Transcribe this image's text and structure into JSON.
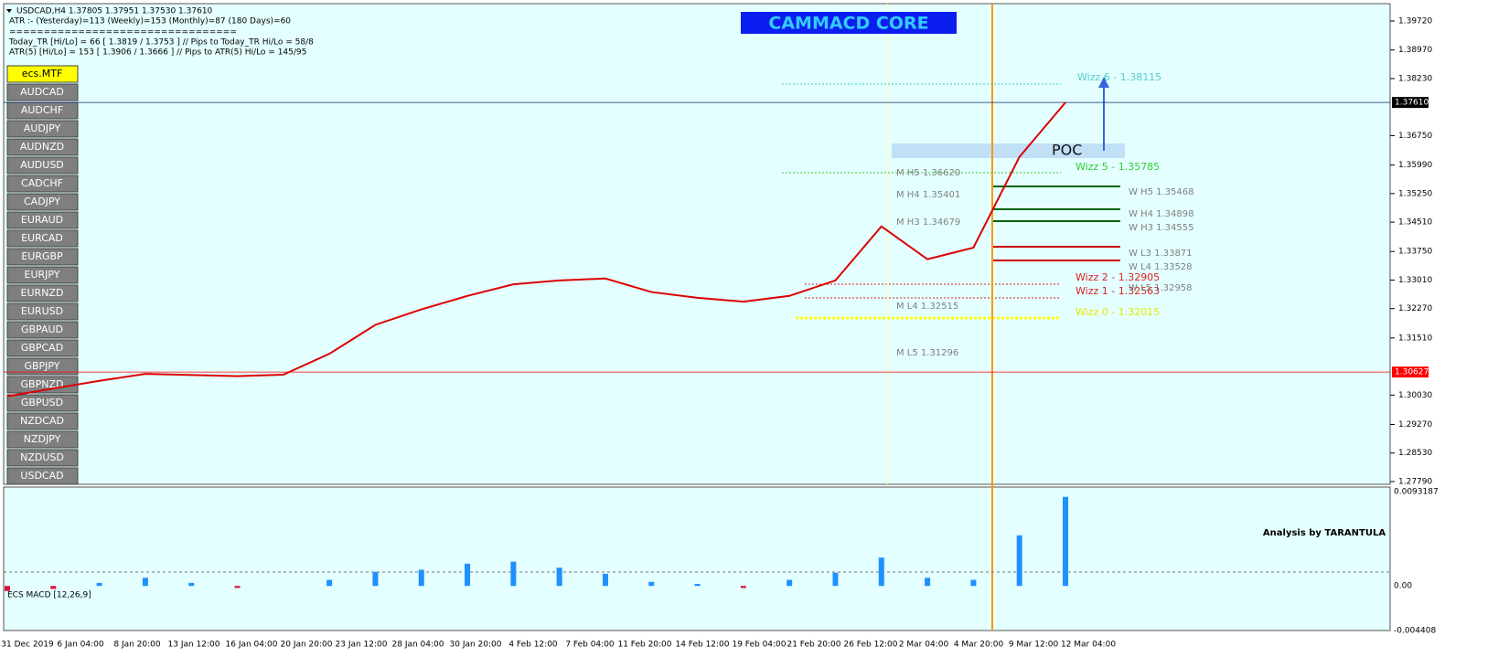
{
  "header": {
    "symbol_line": "USDCAD,H4  1.37805 1.37951 1.37530 1.37610",
    "atr_line": "ATR :- (Yesterday)=113        (Weekly)=153        (Monthly)=87        (180 Days)=60",
    "separator": "=================================",
    "today_tr_line": "Today_TR [Hi/Lo] = 66 [ 1.3819 / 1.3753 ]   // Pips to Today_TR Hi/Lo  = 58/8",
    "atr5_line": "ATR(5)        [Hi/Lo] = 153 [ 1.3906 / 1.3666 ]  //  Pips to ATR(5) Hi/Lo      = 145/95"
  },
  "banner": "CAMMACD CORE",
  "buttons": [
    "ecs.MTF",
    "AUDCAD",
    "AUDCHF",
    "AUDJPY",
    "AUDNZD",
    "AUDUSD",
    "CADCHF",
    "CADJPY",
    "EURAUD",
    "EURCAD",
    "EURGBP",
    "EURJPY",
    "EURNZD",
    "EURUSD",
    "GBPAUD",
    "GBPCAD",
    "GBPJPY",
    "GBPNZD",
    "GBPUSD",
    "NZDCAD",
    "NZDJPY",
    "NZDUSD",
    "USDCAD"
  ],
  "levels": [
    {
      "text": "Wizz 6 - 1.38115",
      "color": "#55cccc"
    },
    {
      "text": "POC",
      "color": "#111111"
    },
    {
      "text": "Wizz 5 - 1.35785",
      "color": "#33cc33"
    },
    {
      "text": "Wizz 2 - 1.32905",
      "color": "#dd2222"
    },
    {
      "text": "Wizz 1 - 1.32563",
      "color": "#dd2222"
    },
    {
      "text": "Wizz 0 - 1.32015",
      "color": "#e8e800"
    },
    {
      "text": "M  H5 1.36620",
      "color": "#808080"
    },
    {
      "text": "M  H4 1.35401",
      "color": "#808080"
    },
    {
      "text": "M  H3 1.34679",
      "color": "#808080"
    },
    {
      "text": "M  L4 1.32515",
      "color": "#808080"
    },
    {
      "text": "M  L5 1.31296",
      "color": "#808080"
    },
    {
      "text": "W  H5 1.35468",
      "color": "#808080"
    },
    {
      "text": "W  H4 1.34898",
      "color": "#808080"
    },
    {
      "text": "W  H3 1.34555",
      "color": "#808080"
    },
    {
      "text": "W  L3 1.33871",
      "color": "#808080"
    },
    {
      "text": "W  L4 1.33528",
      "color": "#808080"
    },
    {
      "text": "W  L5 1.32958",
      "color": "#808080"
    }
  ],
  "price_axis": {
    "ylim": [
      1.2779,
      1.3972
    ],
    "yticks": [
      {
        "value": 1.3972,
        "label": "1.39720"
      },
      {
        "value": 1.3897,
        "label": "1.38970"
      },
      {
        "value": 1.3823,
        "label": "1.38230"
      },
      {
        "value": 1.3675,
        "label": "1.36750"
      },
      {
        "value": 1.3599,
        "label": "1.35990"
      },
      {
        "value": 1.3525,
        "label": "1.35250"
      },
      {
        "value": 1.3451,
        "label": "1.34510"
      },
      {
        "value": 1.3375,
        "label": "1.33750"
      },
      {
        "value": 1.3301,
        "label": "1.33010"
      },
      {
        "value": 1.3227,
        "label": "1.32270"
      },
      {
        "value": 1.3151,
        "label": "1.31510"
      },
      {
        "value": 1.3003,
        "label": "1.30030"
      },
      {
        "value": 1.2927,
        "label": "1.29270"
      },
      {
        "value": 1.2853,
        "label": "1.28530"
      },
      {
        "value": 1.2779,
        "label": "1.27790"
      }
    ],
    "current": {
      "value": 1.3761,
      "label": "1.37610"
    },
    "marker": {
      "value": 1.30627,
      "label": "1.30627"
    }
  },
  "price_series": [
    1.3,
    1.302,
    1.304,
    1.3058,
    1.3055,
    1.3052,
    1.3056,
    1.311,
    1.3185,
    1.3225,
    1.326,
    1.329,
    1.33,
    1.3305,
    1.327,
    1.3255,
    1.3245,
    1.326,
    1.33,
    1.344,
    1.3355,
    1.3385,
    1.362,
    1.3761
  ],
  "macd": {
    "title": "ECS MACD [12,26,9]",
    "note": "Analysis by TARANTULA",
    "ylim": [
      -0.004408,
      0.0093187
    ],
    "yticks": [
      0.0093187,
      {
        "value": 0,
        "label": "0.00"
      },
      -0.004408
    ],
    "values": [
      -0.0005,
      -0.0003,
      0.0003,
      0.0008,
      0.0003,
      -0.0002,
      0,
      0.0006,
      0.0014,
      0.0016,
      0.0022,
      0.0024,
      0.0018,
      0.0012,
      0.0004,
      0.0002,
      -0.0002,
      0.0006,
      0.0013,
      0.0028,
      0.0008,
      0.0006,
      0.005,
      0.0088
    ]
  },
  "dates": [
    "31 Dec 2019",
    "6 Jan 04:00",
    "8 Jan 20:00",
    "13 Jan 12:00",
    "16 Jan 04:00",
    "20 Jan 20:00",
    "23 Jan 12:00",
    "28 Jan 04:00",
    "30 Jan 20:00",
    "4 Feb 12:00",
    "7 Feb 04:00",
    "11 Feb 20:00",
    "14 Feb 12:00",
    "19 Feb 04:00",
    "21 Feb 20:00",
    "26 Feb 12:00",
    "2 Mar 04:00",
    "4 Mar 20:00",
    "9 Mar 12:00",
    "12 Mar 04:00"
  ]
}
